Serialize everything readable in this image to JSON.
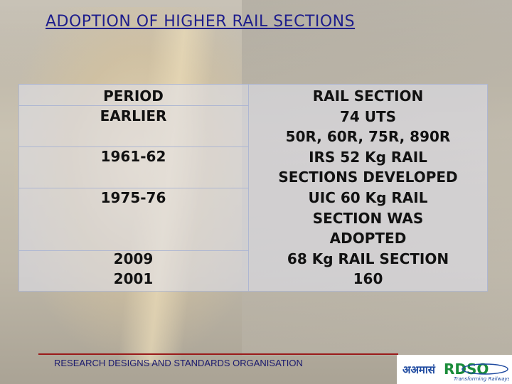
{
  "title": "ADOPTION OF HIGHER RAIL SECTIONS",
  "table": {
    "left": {
      "header_line1": "PERIOD",
      "header_line2": "EARLIER",
      "row_1961": "1961-62",
      "row_1975": "1975-76",
      "row_2009": "2009",
      "row_2001": "2001"
    },
    "right_lines": [
      "RAIL SECTION",
      "74 UTS",
      "50R, 60R, 75R, 890R",
      "IRS 52 Kg RAIL",
      "SECTIONS DEVELOPED",
      "UIC 60 Kg RAIL",
      "SECTION WAS",
      "ADOPTED",
      "68 Kg RAIL SECTION",
      "160"
    ]
  },
  "footer": {
    "org": "RESEARCH DESIGNS AND STANDARDS ORGANISATION",
    "logo_text": "RDSO",
    "logo_devanagari": "अअमासं",
    "logo_tagline": "Transforming Railways"
  },
  "colors": {
    "title": "#1e1e8c",
    "footer_line": "#9a1a1a",
    "logo_green": "#1a8c3a",
    "logo_blue": "#1e4aa0"
  }
}
